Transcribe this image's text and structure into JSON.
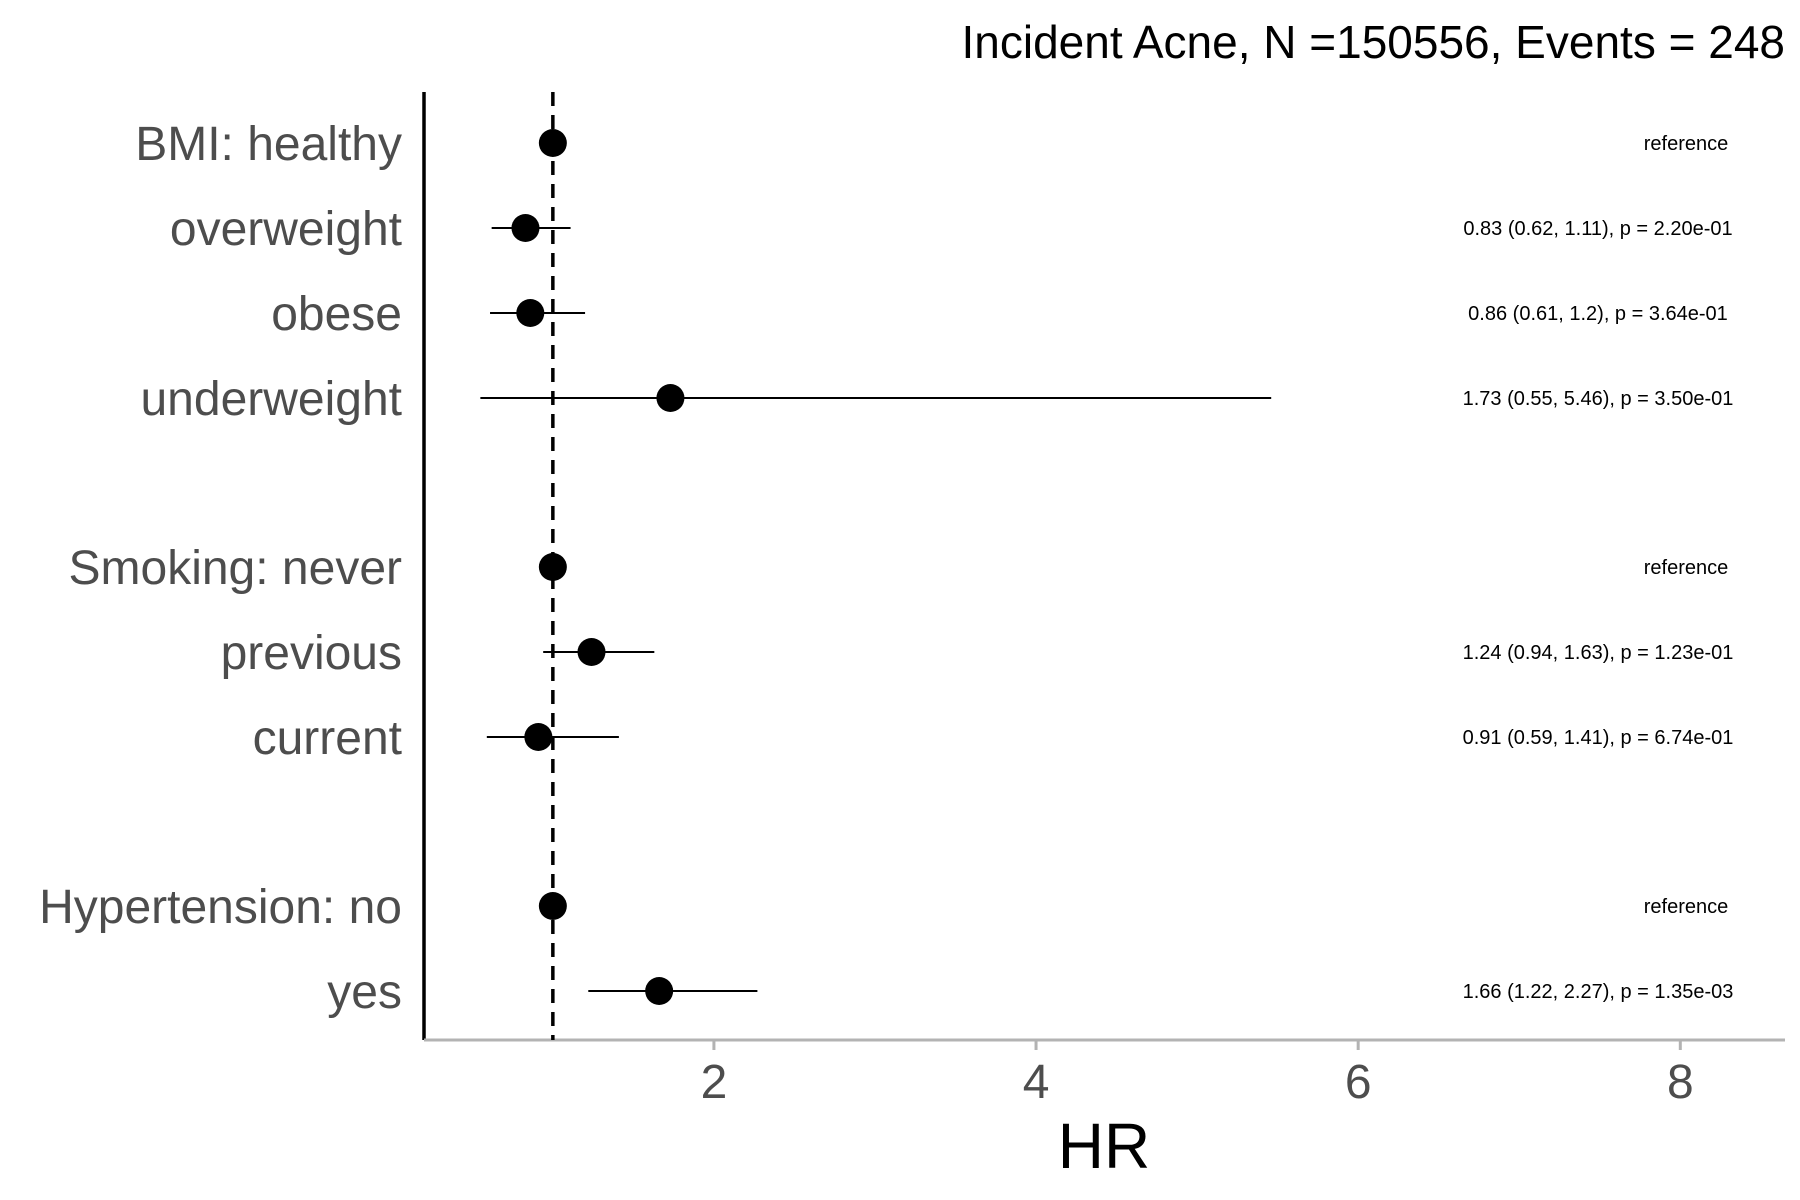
{
  "chart_data": {
    "type": "forest",
    "title": "Incident Acne, N =150556, Events = 248",
    "xlabel": "HR",
    "xlim": [
      0.2,
      8.65
    ],
    "xticks": [
      2,
      4,
      6,
      8
    ],
    "reference_line": 1,
    "grid": false,
    "rows": [
      {
        "label": "BMI: healthy",
        "hr": 1.0,
        "lower": null,
        "upper": null,
        "annotation": "reference"
      },
      {
        "label": "overweight",
        "hr": 0.83,
        "lower": 0.62,
        "upper": 1.11,
        "annotation": "0.83 (0.62, 1.11), p = 2.20e-01"
      },
      {
        "label": "obese",
        "hr": 0.86,
        "lower": 0.61,
        "upper": 1.2,
        "annotation": "0.86 (0.61, 1.2), p = 3.64e-01"
      },
      {
        "label": "underweight",
        "hr": 1.73,
        "lower": 0.55,
        "upper": 5.46,
        "annotation": "1.73 (0.55, 5.46), p = 3.50e-01"
      },
      {
        "label": "Smoking: never",
        "hr": 1.0,
        "lower": null,
        "upper": null,
        "annotation": "reference"
      },
      {
        "label": "previous",
        "hr": 1.24,
        "lower": 0.94,
        "upper": 1.63,
        "annotation": "1.24 (0.94, 1.63), p = 1.23e-01"
      },
      {
        "label": "current",
        "hr": 0.91,
        "lower": 0.59,
        "upper": 1.41,
        "annotation": "0.91 (0.59, 1.41), p = 6.74e-01"
      },
      {
        "label": "Hypertension: no",
        "hr": 1.0,
        "lower": null,
        "upper": null,
        "annotation": "reference"
      },
      {
        "label": "yes",
        "hr": 1.66,
        "lower": 1.22,
        "upper": 2.27,
        "annotation": "1.66 (1.22, 2.27), p = 1.35e-03"
      }
    ]
  }
}
